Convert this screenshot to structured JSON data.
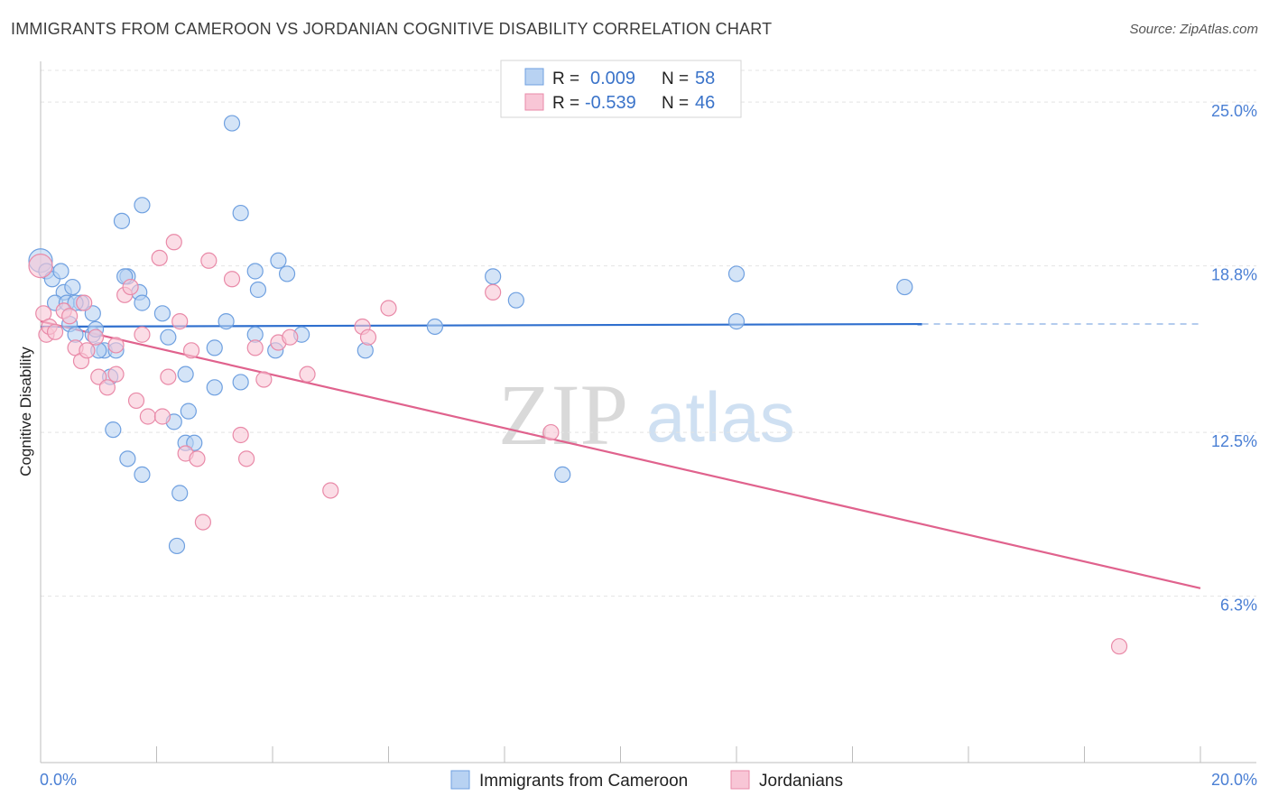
{
  "header": {
    "title": "IMMIGRANTS FROM CAMEROON VS JORDANIAN COGNITIVE DISABILITY CORRELATION CHART",
    "source": "Source: ZipAtlas.com"
  },
  "watermark": {
    "zip": "ZIP",
    "atlas": "atlas"
  },
  "legend_top": {
    "rows": [
      {
        "r_label": "R =",
        "r_value": "0.009",
        "n_label": "N =",
        "n_value": "58",
        "color": "#a9c8ef"
      },
      {
        "r_label": "R =",
        "r_value": "-0.539",
        "n_label": "N =",
        "n_value": "46",
        "color": "#f6b8cc"
      }
    ]
  },
  "legend_bottom": {
    "items": [
      {
        "label": "Immigrants from Cameroon",
        "color": "#a9c8ef"
      },
      {
        "label": "Jordanians",
        "color": "#f6b8cc"
      }
    ]
  },
  "chart_data": {
    "type": "scatter",
    "title": "IMMIGRANTS FROM CAMEROON VS JORDANIAN COGNITIVE DISABILITY CORRELATION CHART",
    "xlabel": "",
    "ylabel": "Cognitive Disability",
    "xlim": [
      0,
      20
    ],
    "ylim": [
      0,
      26.2
    ],
    "x_tick_labels": [
      "0.0%",
      "20.0%"
    ],
    "y_ticks": [
      6.3,
      12.5,
      18.8,
      25.0
    ],
    "y_tick_labels": [
      "6.3%",
      "12.5%",
      "18.8%",
      "25.0%"
    ],
    "grid": true,
    "series": [
      {
        "name": "Immigrants from Cameroon",
        "color": "#6fa0e0",
        "fill": "#b8d2f2",
        "trend": {
          "x0": 0,
          "y0": 16.5,
          "x1": 15.2,
          "y1": 16.6,
          "dashed_to_x": 20,
          "dashed_y": 16.6,
          "color": "#2f6fce"
        },
        "points": [
          [
            0.0,
            19.0
          ],
          [
            0.1,
            18.6
          ],
          [
            0.2,
            18.3
          ],
          [
            0.35,
            18.6
          ],
          [
            0.4,
            17.8
          ],
          [
            0.25,
            17.4
          ],
          [
            0.45,
            17.4
          ],
          [
            0.7,
            17.4
          ],
          [
            0.55,
            18.0
          ],
          [
            0.6,
            17.4
          ],
          [
            0.5,
            16.6
          ],
          [
            0.9,
            17.0
          ],
          [
            0.9,
            16.2
          ],
          [
            0.95,
            16.4
          ],
          [
            1.1,
            15.6
          ],
          [
            1.3,
            15.6
          ],
          [
            1.2,
            14.6
          ],
          [
            1.5,
            18.4
          ],
          [
            1.45,
            18.4
          ],
          [
            1.7,
            17.8
          ],
          [
            1.75,
            17.4
          ],
          [
            1.4,
            20.5
          ],
          [
            1.75,
            21.1
          ],
          [
            1.25,
            12.6
          ],
          [
            1.5,
            11.5
          ],
          [
            1.75,
            10.9
          ],
          [
            2.2,
            16.1
          ],
          [
            2.5,
            14.7
          ],
          [
            2.55,
            13.3
          ],
          [
            2.5,
            12.1
          ],
          [
            2.3,
            12.9
          ],
          [
            2.4,
            10.2
          ],
          [
            2.35,
            8.2
          ],
          [
            2.65,
            12.1
          ],
          [
            3.0,
            14.2
          ],
          [
            3.2,
            16.7
          ],
          [
            3.0,
            15.7
          ],
          [
            3.45,
            14.4
          ],
          [
            3.45,
            20.8
          ],
          [
            3.3,
            24.2
          ],
          [
            3.7,
            18.6
          ],
          [
            3.75,
            17.9
          ],
          [
            3.7,
            16.2
          ],
          [
            4.05,
            15.6
          ],
          [
            4.1,
            19.0
          ],
          [
            4.25,
            18.5
          ],
          [
            4.5,
            16.2
          ],
          [
            5.6,
            15.6
          ],
          [
            6.8,
            16.5
          ],
          [
            7.8,
            18.4
          ],
          [
            8.2,
            17.5
          ],
          [
            9.0,
            10.9
          ],
          [
            12.0,
            18.5
          ],
          [
            12.0,
            16.7
          ],
          [
            14.9,
            18.0
          ],
          [
            0.6,
            16.2
          ],
          [
            1.0,
            15.6
          ],
          [
            2.1,
            17.0
          ]
        ]
      },
      {
        "name": "Jordanians",
        "color": "#e98aa8",
        "fill": "#f8c6d6",
        "trend": {
          "x0": 0,
          "y0": 16.7,
          "x1": 20,
          "y1": 6.6,
          "color": "#e0628d"
        },
        "points": [
          [
            0.0,
            18.8
          ],
          [
            0.05,
            17.0
          ],
          [
            0.1,
            16.2
          ],
          [
            0.15,
            16.5
          ],
          [
            0.25,
            16.3
          ],
          [
            0.4,
            17.1
          ],
          [
            0.5,
            16.9
          ],
          [
            0.6,
            15.7
          ],
          [
            0.7,
            15.2
          ],
          [
            0.8,
            15.6
          ],
          [
            0.95,
            16.1
          ],
          [
            1.0,
            14.6
          ],
          [
            1.15,
            14.2
          ],
          [
            1.3,
            14.7
          ],
          [
            1.45,
            17.7
          ],
          [
            1.55,
            18.0
          ],
          [
            1.65,
            13.7
          ],
          [
            1.75,
            16.2
          ],
          [
            1.85,
            13.1
          ],
          [
            2.05,
            19.1
          ],
          [
            2.1,
            13.1
          ],
          [
            2.2,
            14.6
          ],
          [
            2.3,
            19.7
          ],
          [
            2.4,
            16.7
          ],
          [
            2.5,
            11.7
          ],
          [
            2.6,
            15.6
          ],
          [
            2.7,
            11.5
          ],
          [
            2.8,
            9.1
          ],
          [
            2.9,
            19.0
          ],
          [
            3.3,
            18.3
          ],
          [
            3.45,
            12.4
          ],
          [
            3.55,
            11.5
          ],
          [
            3.7,
            15.7
          ],
          [
            3.85,
            14.5
          ],
          [
            4.1,
            15.9
          ],
          [
            4.3,
            16.1
          ],
          [
            4.6,
            14.7
          ],
          [
            5.0,
            10.3
          ],
          [
            5.55,
            16.5
          ],
          [
            5.65,
            16.1
          ],
          [
            6.0,
            17.2
          ],
          [
            7.8,
            17.8
          ],
          [
            8.8,
            12.5
          ],
          [
            18.6,
            4.4
          ],
          [
            1.3,
            15.8
          ],
          [
            0.75,
            17.4
          ]
        ]
      }
    ]
  }
}
